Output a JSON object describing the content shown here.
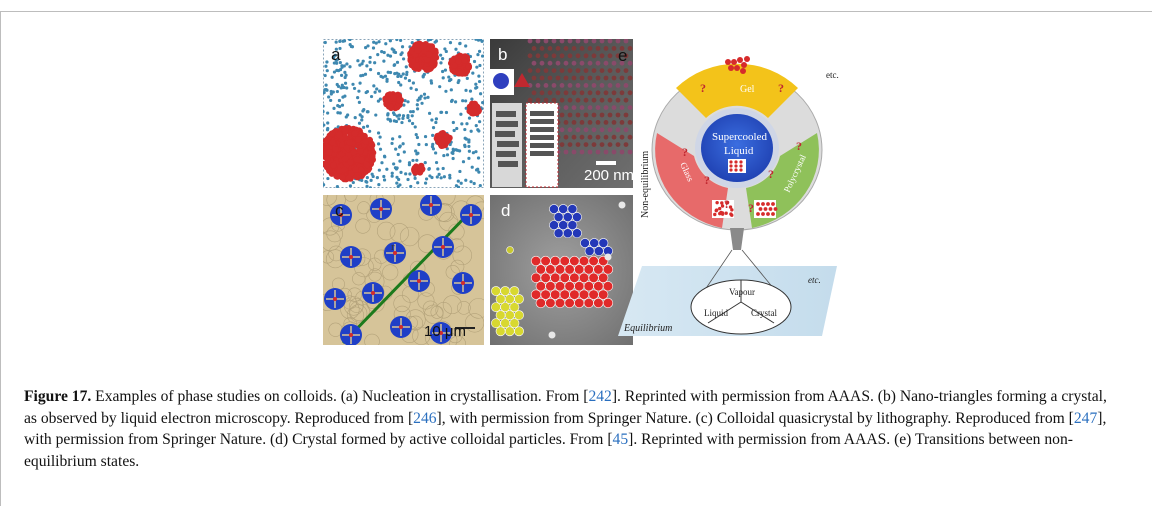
{
  "figure": {
    "panel_labels": {
      "a": "a",
      "b": "b",
      "c": "c",
      "d": "d",
      "e": "e"
    },
    "scale_bars": {
      "b": "200 nm",
      "c": "10 μm"
    },
    "panel_c_marker": "r",
    "panel_e": {
      "gel": "Gel",
      "center": [
        "Supercooled",
        "Liquid"
      ],
      "glass": "Glass",
      "polycrystal": "Polycrystal",
      "etc_top": "etc.",
      "etc_bottom": "etc.",
      "non_equilibrium": "Non-equilibrium",
      "equilibrium": "Equilibrium",
      "vapour": "Vapour",
      "liquid": "Liquid",
      "crystal": "Crystal",
      "question_mark": "?"
    }
  },
  "caption": {
    "label": "Figure 17.",
    "s1": " Examples of phase studies on colloids. (a) Nucleation in crystallisation. From [",
    "r1": "242",
    "s2": "]. Reprinted with permission from AAAS. (b) Nano-triangles forming a crystal, as observed by liquid electron microscopy. Reproduced from [",
    "r2": "246",
    "s3": "], with permission from Springer Nature. (c) Colloidal quasicrystal by lithography. Reproduced from [",
    "r3": "247",
    "s4": "], with permission from Springer Nature. (d) Crystal formed by active colloidal particles. From [",
    "r4": "45",
    "s5": "]. Reprinted with permission from AAAS. (e) Transitions between non-equilibrium states."
  }
}
